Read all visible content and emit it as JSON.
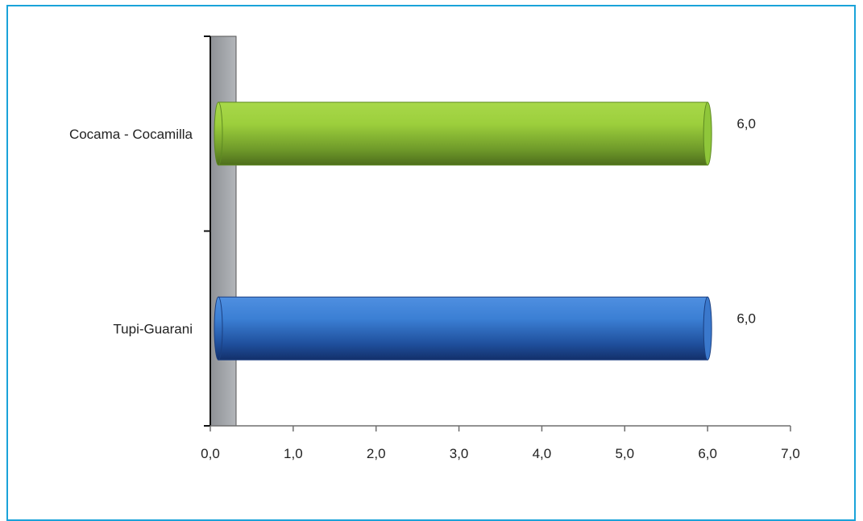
{
  "chart_data": {
    "type": "bar",
    "orientation": "horizontal",
    "style": "3d-cylinder",
    "categories": [
      "Tupi-Guarani",
      "Cocama - Cocamilla"
    ],
    "values": [
      6.0,
      6.0
    ],
    "value_labels": [
      "6,0",
      "6,0"
    ],
    "bar_colors": [
      "#2f6fbf",
      "#8cc63f"
    ],
    "xlim": [
      0,
      7
    ],
    "x_ticks": [
      0,
      1,
      2,
      3,
      4,
      5,
      6,
      7
    ],
    "x_tick_labels": [
      "0,0",
      "1,0",
      "2,0",
      "3,0",
      "4,0",
      "5,0",
      "6,0",
      "7,0"
    ],
    "title": "",
    "xlabel": "",
    "ylabel": "",
    "grid": false,
    "legend": "none"
  },
  "colors": {
    "frame": "#1aa3d9",
    "wall": "#a6a9ad",
    "axis": "#6e6e6e"
  }
}
